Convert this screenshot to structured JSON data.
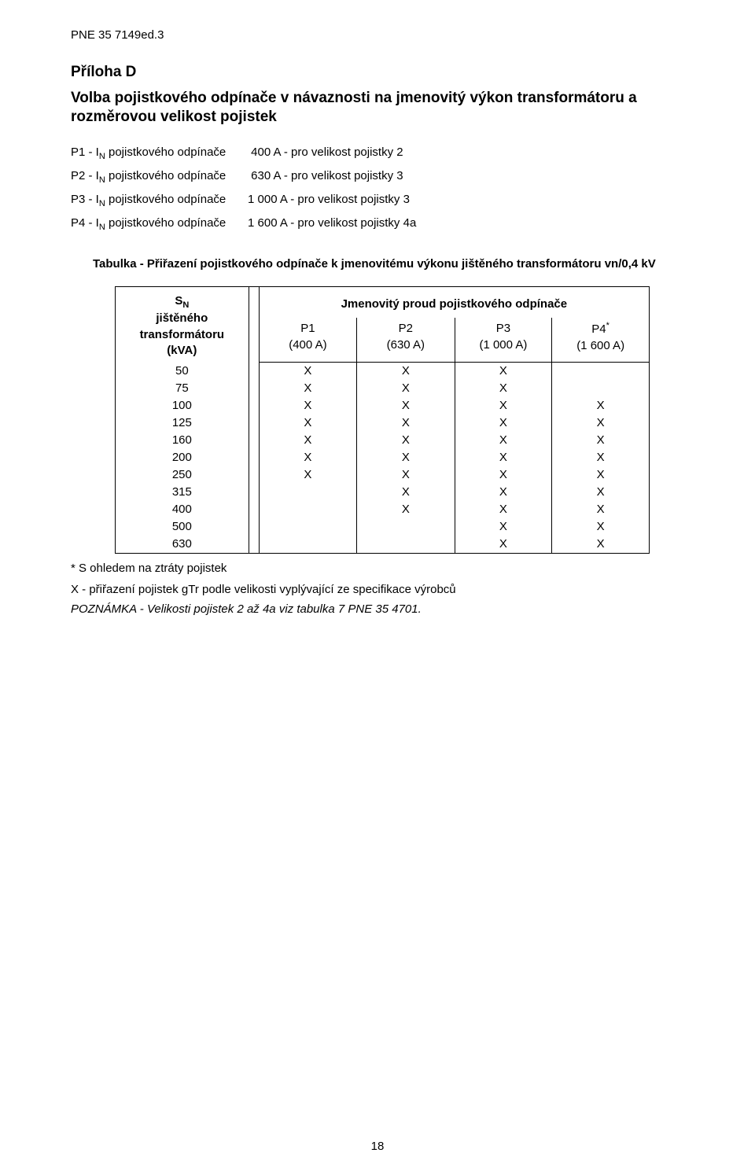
{
  "doc_header": "PNE 35 7149ed.3",
  "appendix": {
    "title": "Příloha  D",
    "subtitle": "Volba pojistkového odpínače v návaznosti na jmenovitý výkon transformátoru a rozměrovou velikost pojistek"
  },
  "definitions": [
    {
      "label_pre": "P1 - I",
      "label_sub": "N",
      "label_post": " pojistkového odpínače",
      "value": "   400 A - pro velikost pojistky 2"
    },
    {
      "label_pre": "P2 - I",
      "label_sub": "N",
      "label_post": " pojistkového odpínače",
      "value": "   630 A - pro velikost pojistky 3"
    },
    {
      "label_pre": "P3 - I",
      "label_sub": "N",
      "label_post": " pojistkového odpínače",
      "value": "1 000 A - pro velikost pojistky 3"
    },
    {
      "label_pre": "P4 - I",
      "label_sub": "N",
      "label_post": " pojistkového odpínače",
      "value": "1 600 A - pro velikost pojistky 4a"
    }
  ],
  "table_caption": "Tabulka - Přiřazení pojistkového odpínače k jmenovitému výkonu jištěného transformátoru vn/0,4 kV",
  "table": {
    "sn_header_pre": "S",
    "sn_header_sub": "N",
    "sn_header_lines": [
      "jištěného",
      "transformátoru",
      "(kVA)"
    ],
    "right_header": "Jmenovitý proud pojistkového odpínače",
    "columns": [
      {
        "name": "P1",
        "sub": "(400 A)",
        "sup": ""
      },
      {
        "name": "P2",
        "sub": "(630 A)",
        "sup": ""
      },
      {
        "name": "P3",
        "sub": "(1 000 A)",
        "sup": ""
      },
      {
        "name": "P4",
        "sub": "(1 600 A)",
        "sup": "*"
      }
    ],
    "rows": [
      {
        "sn": "50",
        "v": [
          "X",
          "X",
          "X",
          ""
        ]
      },
      {
        "sn": "75",
        "v": [
          "X",
          "X",
          "X",
          ""
        ]
      },
      {
        "sn": "100",
        "v": [
          "X",
          "X",
          "X",
          "X"
        ]
      },
      {
        "sn": "125",
        "v": [
          "X",
          "X",
          "X",
          "X"
        ]
      },
      {
        "sn": "160",
        "v": [
          "X",
          "X",
          "X",
          "X"
        ]
      },
      {
        "sn": "200",
        "v": [
          "X",
          "X",
          "X",
          "X"
        ]
      },
      {
        "sn": "250",
        "v": [
          "X",
          "X",
          "X",
          "X"
        ]
      },
      {
        "sn": "315",
        "v": [
          "",
          "X",
          "X",
          "X"
        ]
      },
      {
        "sn": "400",
        "v": [
          "",
          "X",
          "X",
          "X"
        ]
      },
      {
        "sn": "500",
        "v": [
          "",
          "",
          "X",
          "X"
        ]
      },
      {
        "sn": "630",
        "v": [
          "",
          "",
          "X",
          "X"
        ]
      }
    ]
  },
  "footnotes": {
    "star": "* S ohledem na ztráty pojistek",
    "xnote": "X - přiřazení pojistek gTr podle velikosti vyplývající ze specifikace výrobců",
    "poznamka": "POZNÁMKA - Velikosti pojistek 2 až 4a viz tabulka 7 PNE 35 4701."
  },
  "page_number": "18"
}
